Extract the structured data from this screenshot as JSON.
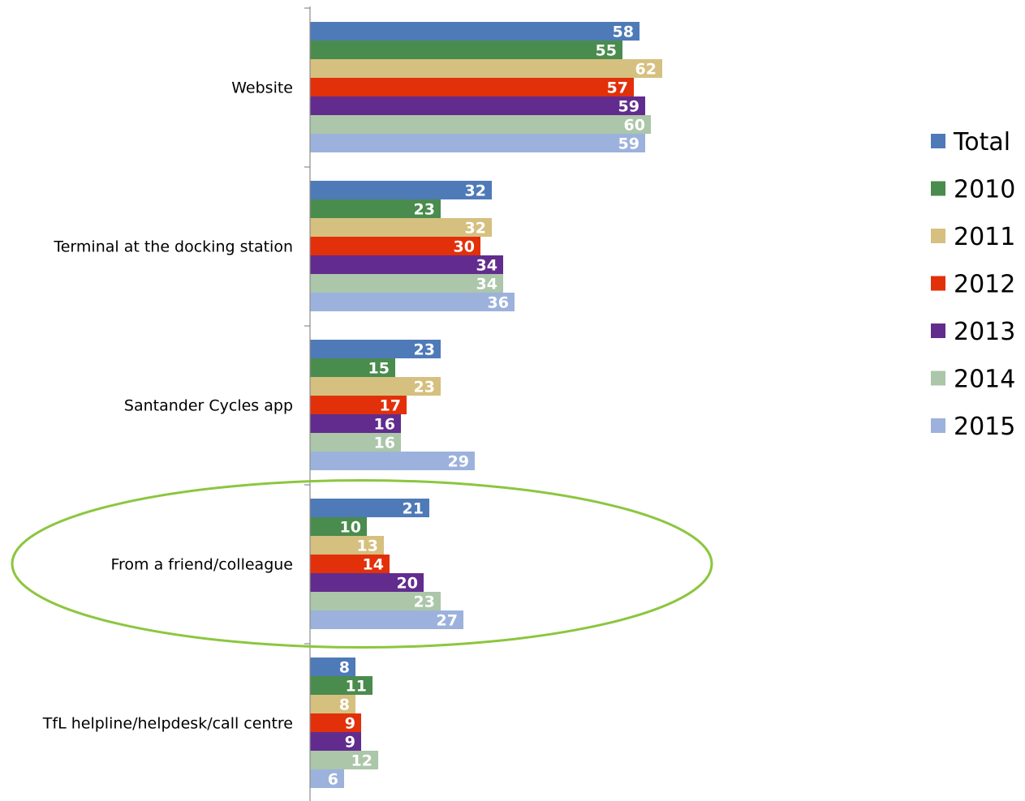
{
  "chart_data": {
    "type": "bar",
    "orientation": "horizontal",
    "categories": [
      "Website",
      "Terminal at the docking station",
      "Santander Cycles app",
      "From a friend/colleague",
      "TfL helpline/helpdesk/call centre"
    ],
    "series": [
      {
        "name": "Total",
        "color": "#4F7AB8",
        "values": [
          58,
          32,
          23,
          21,
          8
        ]
      },
      {
        "name": "2010",
        "color": "#4A8B4E",
        "values": [
          55,
          23,
          15,
          10,
          11
        ]
      },
      {
        "name": "2011",
        "color": "#D6C07F",
        "values": [
          62,
          32,
          23,
          13,
          8
        ]
      },
      {
        "name": "2012",
        "color": "#E2300A",
        "values": [
          57,
          30,
          17,
          14,
          9
        ]
      },
      {
        "name": "2013",
        "color": "#622C8E",
        "values": [
          59,
          34,
          16,
          20,
          9
        ]
      },
      {
        "name": "2014",
        "color": "#ABC6A9",
        "values": [
          60,
          34,
          16,
          23,
          12
        ]
      },
      {
        "name": "2015",
        "color": "#9CB2DC",
        "values": [
          59,
          36,
          29,
          27,
          6
        ]
      }
    ],
    "xlim": [
      0,
      70
    ],
    "grid": false,
    "legend_position": "right",
    "data_labels": true,
    "highlight": {
      "category": "From a friend/colleague",
      "shape": "ellipse",
      "color": "#8CC63F"
    }
  }
}
